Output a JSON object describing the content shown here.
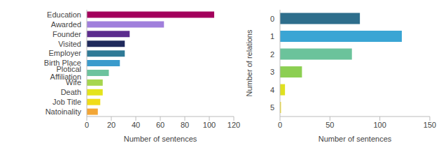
{
  "chart_data": [
    {
      "type": "bar",
      "orientation": "horizontal",
      "grid": false,
      "categories": [
        "Education",
        "Awarded",
        "Founder",
        "Visited",
        "Employer",
        "Birth Place",
        "Plotical Affiliation",
        "Wife",
        "Death",
        "Job Title",
        "Natoinality"
      ],
      "values": [
        104,
        63,
        35,
        31,
        31,
        27,
        18,
        13,
        13,
        11,
        9
      ],
      "colors": [
        "#a3005c",
        "#a07fdc",
        "#5c2c8e",
        "#1f2a5c",
        "#2f7a96",
        "#3a9bcc",
        "#6cc39e",
        "#a6d64e",
        "#e4e41c",
        "#f0dc18",
        "#f2a636"
      ],
      "x_label": "Number of sentences",
      "xlim": [
        0,
        120
      ],
      "xticks": [
        0,
        20,
        40,
        60,
        80,
        100,
        120
      ]
    },
    {
      "type": "bar",
      "orientation": "horizontal",
      "grid": false,
      "categories": [
        "0",
        "1",
        "2",
        "3",
        "4",
        "5"
      ],
      "values": [
        80,
        122,
        72,
        22,
        5,
        1
      ],
      "colors": [
        "#2e6e8c",
        "#3aa5d4",
        "#6bc39b",
        "#8ccf52",
        "#dfe020",
        "#f3dc14"
      ],
      "x_label": "Number of sentences",
      "y_label": "Number of relations",
      "xlim": [
        0,
        150
      ],
      "xticks": [
        0,
        50,
        100,
        150
      ]
    }
  ]
}
